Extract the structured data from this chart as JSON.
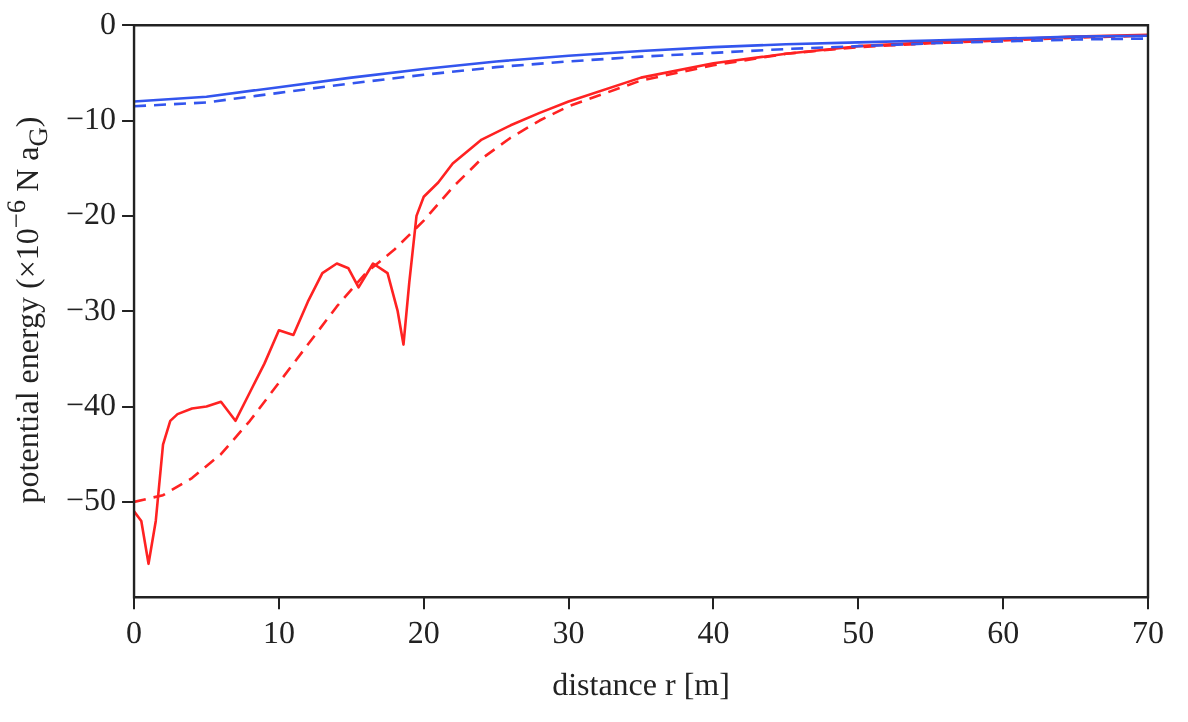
{
  "chart_data": {
    "type": "line",
    "xlabel": "distance r [m]",
    "ylabel": "potential energy (×10$^{−6}$ N a$_{G}$)",
    "xlim": [
      0,
      70
    ],
    "xticks": [
      0,
      10,
      20,
      30,
      40,
      50,
      60,
      70
    ],
    "ylim": [
      -60,
      0
    ],
    "yticks": [
      {
        "value": 0,
        "label": "0"
      },
      {
        "value": -10,
        "label": "−10"
      },
      {
        "value": -20,
        "label": "−20"
      },
      {
        "value": -30,
        "label": "−30"
      },
      {
        "value": -40,
        "label": "−40"
      },
      {
        "value": -50,
        "label": "−50"
      }
    ],
    "grid": false,
    "legend": false,
    "marker": "none",
    "series": [
      {
        "color": "#3355ee",
        "line_style": "solid",
        "x": [
          0,
          5,
          10,
          15,
          20,
          25,
          30,
          35,
          40,
          45,
          50,
          55,
          60,
          65,
          70
        ],
        "values": [
          -8,
          -7.5,
          -6.5,
          -5.5,
          -4.6,
          -3.8,
          -3.2,
          -2.7,
          -2.3,
          -2,
          -1.8,
          -1.6,
          -1.4,
          -1.2,
          -1.1
        ]
      },
      {
        "color": "#3355ee",
        "line_style": "dashed",
        "x": [
          0,
          5,
          10,
          15,
          20,
          25,
          30,
          35,
          40,
          45,
          50,
          55,
          60,
          65,
          70
        ],
        "values": [
          -8.5,
          -8.1,
          -7.1,
          -6.1,
          -5.2,
          -4.4,
          -3.8,
          -3.3,
          -2.9,
          -2.5,
          -2.2,
          -1.9,
          -1.7,
          -1.5,
          -1.4
        ]
      },
      {
        "color": "#ff2222",
        "line_style": "dashed",
        "x": [
          0,
          2,
          4,
          6,
          8,
          10,
          12,
          14,
          16,
          18,
          20,
          22,
          24,
          26,
          28,
          30,
          35,
          40,
          45,
          50,
          55,
          60,
          65,
          70
        ],
        "values": [
          -50,
          -49.3,
          -47.5,
          -45,
          -41.5,
          -37.5,
          -33.5,
          -29.5,
          -26,
          -23.5,
          -20.5,
          -17,
          -14,
          -11.8,
          -10,
          -8.5,
          -5.8,
          -4.2,
          -3,
          -2.3,
          -1.9,
          -1.6,
          -1.3,
          -1.1
        ]
      },
      {
        "color": "#ff2222",
        "line_style": "solid",
        "x": [
          0,
          0.5,
          1,
          1.5,
          2,
          2.5,
          3,
          4,
          5,
          6,
          7,
          8,
          9,
          10,
          11,
          12,
          13,
          14,
          14.8,
          15.5,
          16.5,
          17.5,
          18.2,
          18.6,
          19,
          19.5,
          20,
          21,
          22,
          24,
          26,
          28,
          30,
          35,
          40,
          45,
          50,
          55,
          60,
          65,
          70
        ],
        "values": [
          -51,
          -52,
          -56.5,
          -52,
          -44,
          -41.5,
          -40.8,
          -40.2,
          -40,
          -39.5,
          -41.5,
          -38.5,
          -35.5,
          -32,
          -32.5,
          -29,
          -26,
          -25,
          -25.5,
          -27.5,
          -25,
          -26,
          -30,
          -33.5,
          -27,
          -20,
          -18,
          -16.5,
          -14.5,
          -12,
          -10.5,
          -9.2,
          -8,
          -5.5,
          -4,
          -3,
          -2.2,
          -1.8,
          -1.5,
          -1.2,
          -1
        ]
      }
    ]
  }
}
